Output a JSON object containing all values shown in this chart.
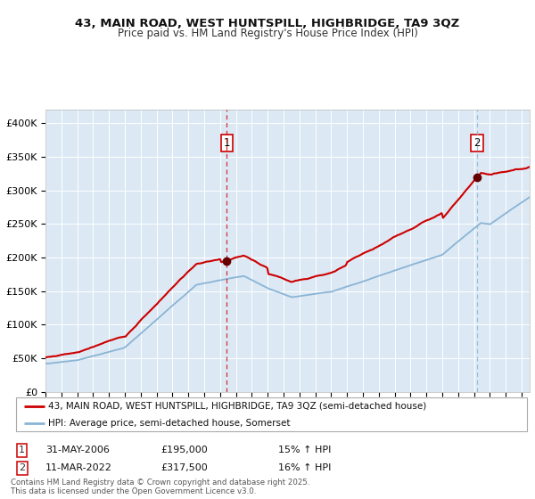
{
  "title": "43, MAIN ROAD, WEST HUNTSPILL, HIGHBRIDGE, TA9 3QZ",
  "subtitle": "Price paid vs. HM Land Registry's House Price Index (HPI)",
  "bg_color": "#dce9f5",
  "fig_bg_color": "#ffffff",
  "red_line_color": "#cc0000",
  "blue_line_color": "#8ab4d4",
  "marker_color": "#660000",
  "grid_color": "#ffffff",
  "sale1_year": 2006.42,
  "sale1_price": 195000,
  "sale1_label": "1",
  "sale2_year": 2022.19,
  "sale2_price": 317500,
  "sale2_label": "2",
  "legend_entry1": "43, MAIN ROAD, WEST HUNTSPILL, HIGHBRIDGE, TA9 3QZ (semi-detached house)",
  "legend_entry2": "HPI: Average price, semi-detached house, Somerset",
  "sale1_date": "31-MAY-2006",
  "annotation1_price": "£195,000",
  "annotation1_hpi": "15% ↑ HPI",
  "sale2_date": "11-MAR-2022",
  "annotation2_price": "£317,500",
  "annotation2_hpi": "16% ↑ HPI",
  "footer1": "Contains HM Land Registry data © Crown copyright and database right 2025.",
  "footer2": "This data is licensed under the Open Government Licence v3.0.",
  "ylim_min": 0,
  "ylim_max": 420000,
  "xlim_min": 1995.0,
  "xlim_max": 2025.5
}
